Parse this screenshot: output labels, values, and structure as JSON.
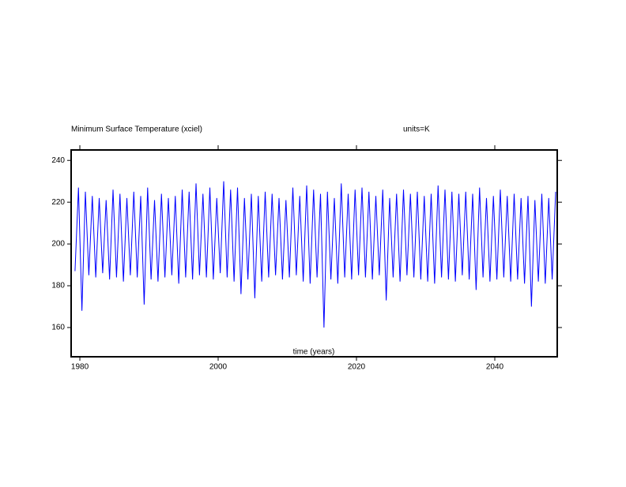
{
  "chart_data": {
    "type": "line",
    "title": "Minimum Surface Temperature (xciel)",
    "subtitle": "units=K",
    "x_label": "time (years)",
    "color": "#0000ff",
    "xlim": [
      1978.74,
      2049.03
    ],
    "xticks": [
      1980,
      2000,
      2020,
      2040
    ],
    "ylim": [
      146,
      245
    ],
    "yticks": [
      160,
      180,
      200,
      220,
      240
    ],
    "x": [
      1979.3,
      1979.8,
      1980.3,
      1980.8,
      1981.3,
      1981.8,
      1982.3,
      1982.8,
      1983.3,
      1983.8,
      1984.3,
      1984.8,
      1985.3,
      1985.8,
      1986.3,
      1986.8,
      1987.3,
      1987.8,
      1988.3,
      1988.8,
      1989.3,
      1989.8,
      1990.3,
      1990.8,
      1991.3,
      1991.8,
      1992.3,
      1992.8,
      1993.3,
      1993.8,
      1994.3,
      1994.8,
      1995.3,
      1995.8,
      1996.3,
      1996.8,
      1997.3,
      1997.8,
      1998.3,
      1998.8,
      1999.3,
      1999.8,
      2000.3,
      2000.8,
      2001.3,
      2001.8,
      2002.3,
      2002.8,
      2003.3,
      2003.8,
      2004.3,
      2004.8,
      2005.3,
      2005.8,
      2006.3,
      2006.8,
      2007.3,
      2007.8,
      2008.3,
      2008.8,
      2009.3,
      2009.8,
      2010.3,
      2010.8,
      2011.3,
      2011.8,
      2012.3,
      2012.8,
      2013.3,
      2013.8,
      2014.3,
      2014.8,
      2015.3,
      2015.8,
      2016.3,
      2016.8,
      2017.3,
      2017.8,
      2018.3,
      2018.8,
      2019.3,
      2019.8,
      2020.3,
      2020.8,
      2021.3,
      2021.8,
      2022.3,
      2022.8,
      2023.3,
      2023.8,
      2024.3,
      2024.8,
      2025.3,
      2025.8,
      2026.3,
      2026.8,
      2027.3,
      2027.8,
      2028.3,
      2028.8,
      2029.3,
      2029.8,
      2030.3,
      2030.8,
      2031.3,
      2031.8,
      2032.3,
      2032.8,
      2033.3,
      2033.8,
      2034.3,
      2034.8,
      2035.3,
      2035.8,
      2036.3,
      2036.8,
      2037.3,
      2037.8,
      2038.3,
      2038.8,
      2039.3,
      2039.8,
      2040.3,
      2040.8,
      2041.3,
      2041.8,
      2042.3,
      2042.8,
      2043.3,
      2043.8,
      2044.3,
      2044.8,
      2045.3,
      2045.8,
      2046.3,
      2046.8,
      2047.3,
      2047.8,
      2048.3,
      2048.8
    ],
    "values": [
      187,
      227,
      168,
      225,
      185,
      223,
      184,
      222,
      186,
      221,
      183,
      226,
      184,
      224,
      182,
      222,
      185,
      225,
      184,
      223,
      171,
      227,
      183,
      221,
      182,
      224,
      184,
      222,
      185,
      223,
      181,
      226,
      184,
      225,
      183,
      229,
      185,
      224,
      184,
      227,
      183,
      222,
      186,
      230,
      184,
      226,
      182,
      227,
      176,
      222,
      183,
      224,
      174,
      223,
      182,
      225,
      184,
      224,
      185,
      222,
      183,
      221,
      184,
      227,
      185,
      223,
      182,
      228,
      181,
      226,
      184,
      224,
      160,
      225,
      183,
      222,
      181,
      229,
      184,
      224,
      183,
      226,
      185,
      227,
      184,
      225,
      183,
      223,
      185,
      226,
      173,
      222,
      184,
      224,
      182,
      226,
      185,
      224,
      184,
      225,
      183,
      223,
      182,
      224,
      181,
      228,
      184,
      226,
      183,
      225,
      182,
      224,
      185,
      225,
      183,
      224,
      178,
      227,
      184,
      222,
      182,
      223,
      183,
      226,
      184,
      223,
      182,
      224,
      183,
      222,
      181,
      223,
      170,
      221,
      182,
      224,
      181,
      222,
      183,
      225
    ]
  }
}
